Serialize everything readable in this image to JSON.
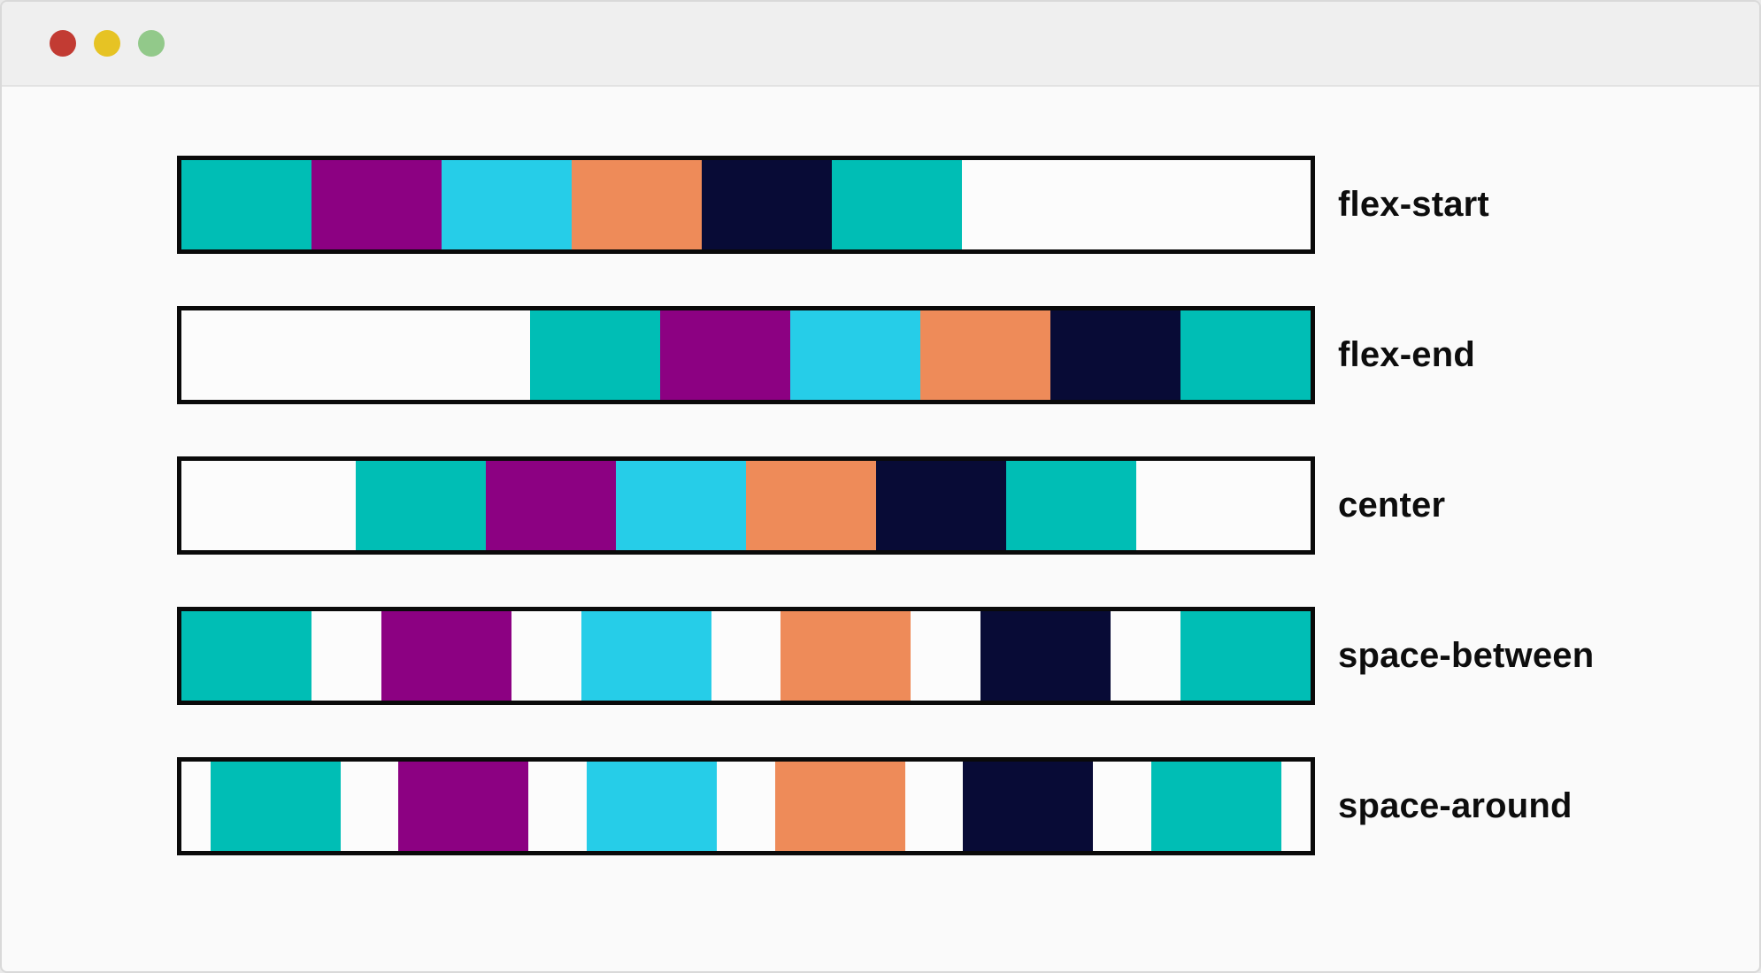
{
  "window": {
    "titlebar": {
      "controls": [
        {
          "name": "close",
          "color": "#c23b33"
        },
        {
          "name": "minimize",
          "color": "#e6c324"
        },
        {
          "name": "maximize",
          "color": "#92c98a"
        }
      ],
      "background": "#efefef"
    },
    "background": "#fafafa",
    "frame_border_color": "#d9d9d9"
  },
  "demo": {
    "container_border_color": "#0a0a0a",
    "container_background": "#fcfcfc",
    "label_color": "#0d0d0d",
    "item_color_names": [
      "teal",
      "purple",
      "cyan",
      "orange",
      "navy",
      "teal"
    ],
    "item_colors": [
      "#00beb5",
      "#8c0182",
      "#26cde8",
      "#ee8b59",
      "#080b36",
      "#00beb5"
    ],
    "rows": [
      {
        "label": "flex-start",
        "justify": "flex-start"
      },
      {
        "label": "flex-end",
        "justify": "flex-end"
      },
      {
        "label": "center",
        "justify": "center"
      },
      {
        "label": "space-between",
        "justify": "space-between"
      },
      {
        "label": "space-around",
        "justify": "space-around"
      }
    ]
  }
}
